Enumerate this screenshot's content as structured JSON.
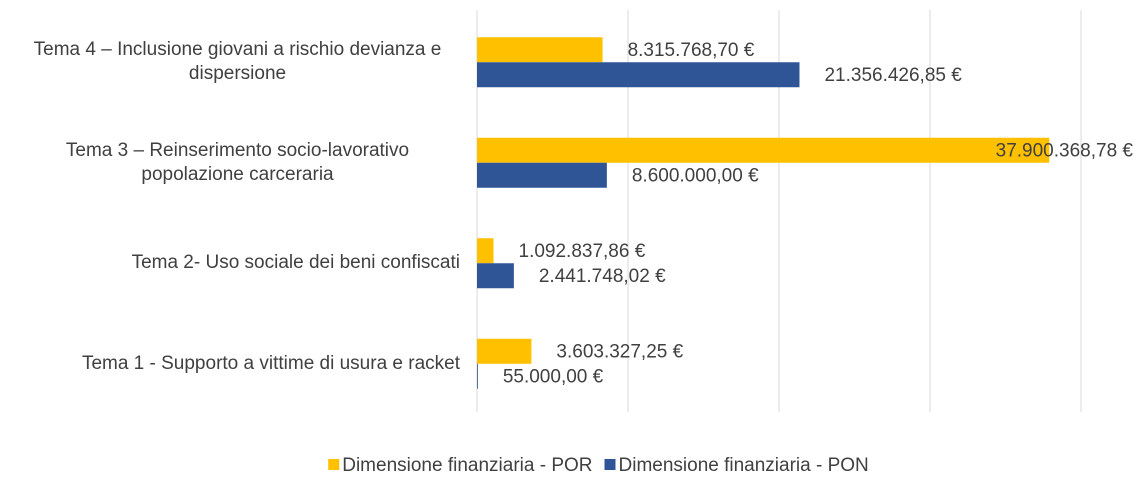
{
  "chart_data": {
    "type": "hbar",
    "categories": [
      "Tema 1 - Supporto a vittime di usura e racket",
      "Tema 2-  Uso sociale dei beni confiscati",
      "Tema 3 – Reinserimento socio-lavorativo popolazione carceraria",
      "Tema 4 – Inclusione giovani a rischio devianza e dispersione"
    ],
    "series": [
      {
        "name": "Dimensione finanziaria - POR",
        "color": "#ffc000",
        "values": [
          3603327.25,
          1092837.86,
          37900368.78,
          8315768.7
        ],
        "value_labels": [
          "3.603.327,25 €",
          "1.092.837,86 €",
          "37.900.368,78 €",
          "8.315.768,70 €"
        ]
      },
      {
        "name": "Dimensione finanziaria - PON",
        "color": "#2f5597",
        "values": [
          55000,
          2441748.02,
          8600000,
          21356426.85
        ],
        "value_labels": [
          "55.000,00 €",
          "2.441.748,02 €",
          "8.600.000,00 €",
          "21.356.426,85 €"
        ]
      }
    ],
    "xlim": [
      0,
      40000000
    ],
    "xticks": [
      0,
      10000000,
      20000000,
      30000000,
      40000000
    ],
    "grid": true,
    "legend": "bottom"
  }
}
